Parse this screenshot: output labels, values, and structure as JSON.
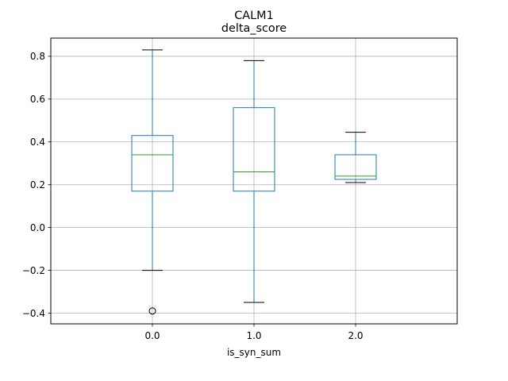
{
  "chart_data": {
    "type": "box",
    "suptitle": "CALM1",
    "title": "delta_score",
    "xlabel": "is_syn_sum",
    "ylabel": "",
    "categories": [
      "0.0",
      "1.0",
      "2.0"
    ],
    "ylim": [
      -0.45,
      0.885
    ],
    "yticks": [
      -0.4,
      -0.2,
      0.0,
      0.2,
      0.4,
      0.6,
      0.8
    ],
    "ytick_labels": [
      "−0.4",
      "−0.2",
      "0.0",
      "0.2",
      "0.4",
      "0.6",
      "0.8"
    ],
    "grid": true,
    "boxes": [
      {
        "category": "0.0",
        "whisker_low": -0.2,
        "q1": 0.17,
        "median": 0.34,
        "q3": 0.43,
        "whisker_high": 0.83,
        "outliers": [
          -0.39
        ]
      },
      {
        "category": "1.0",
        "whisker_low": -0.35,
        "q1": 0.17,
        "median": 0.26,
        "q3": 0.56,
        "whisker_high": 0.78,
        "outliers": []
      },
      {
        "category": "2.0",
        "whisker_low": 0.21,
        "q1": 0.225,
        "median": 0.24,
        "q3": 0.34,
        "whisker_high": 0.445,
        "outliers": []
      }
    ],
    "colors": {
      "box": "#1f77b4",
      "median": "#2ca02c",
      "cap": "#000000",
      "grid": "#b0b0b0"
    }
  }
}
